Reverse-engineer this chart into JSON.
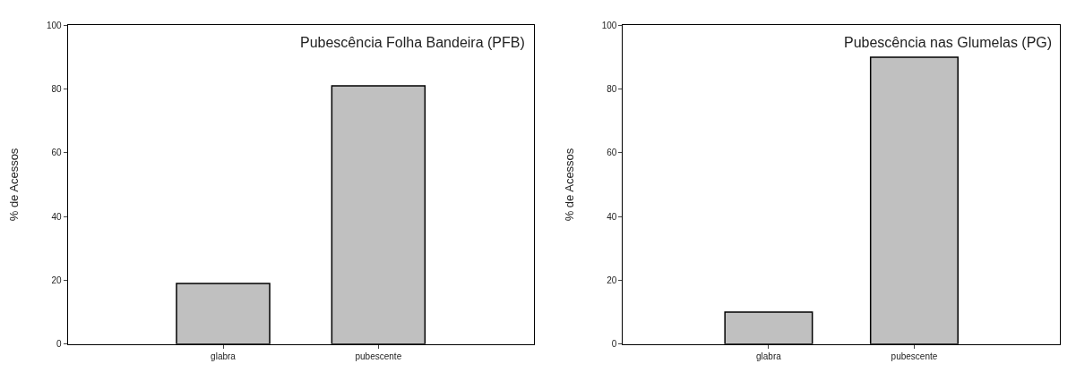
{
  "chart_data": [
    {
      "type": "bar",
      "title": "Pubescência Folha Bandeira (PFB)",
      "ylabel": "% de Acessos",
      "categories": [
        "glabra",
        "pubescente"
      ],
      "values": [
        19,
        81
      ],
      "color": "#c0c0c0",
      "ylim": [
        0,
        100
      ],
      "yticks": [
        0,
        20,
        40,
        60,
        80,
        100
      ]
    },
    {
      "type": "bar",
      "title": "Pubescência nas Glumelas (PG)",
      "ylabel": "% de Acessos",
      "categories": [
        "glabra",
        "pubescente"
      ],
      "values": [
        10,
        90
      ],
      "color": "#c0c0c0",
      "ylim": [
        0,
        100
      ],
      "yticks": [
        0,
        20,
        40,
        60,
        80,
        100
      ]
    }
  ]
}
